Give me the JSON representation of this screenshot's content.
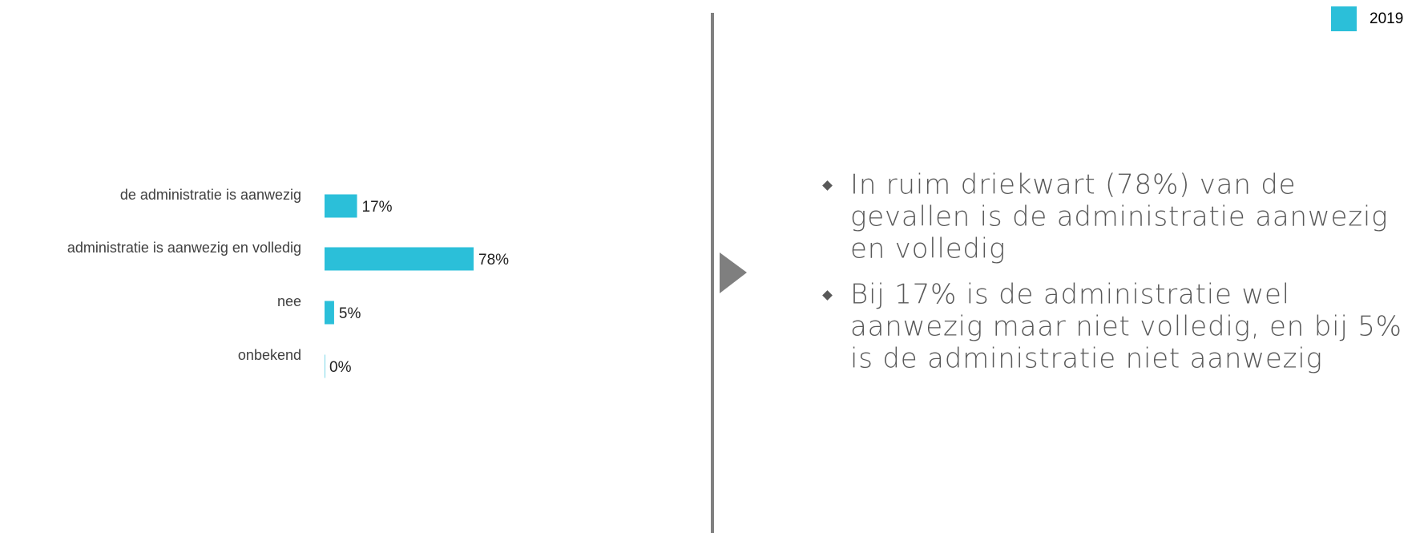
{
  "chart_data": {
    "type": "bar",
    "orientation": "horizontal",
    "categories": [
      "de administratie is aanwezig",
      "administratie is aanwezig en volledig",
      "nee",
      "onbekend"
    ],
    "series": [
      {
        "name": "2019",
        "color": "#2bbfd9",
        "values": [
          17,
          78,
          5,
          0
        ],
        "value_labels": [
          "17%",
          "78%",
          "5%",
          "0%"
        ]
      }
    ]
  },
  "bullets": [
    [
      "In ruim driekwart (78%) van de",
      "gevallen is de administratie aanwezig",
      "en volledig"
    ],
    [
      "Bij 17% is de administratie wel",
      "aanwezig maar niet volledig, en bij 5%",
      "is de administratie niet aanwezig"
    ]
  ]
}
